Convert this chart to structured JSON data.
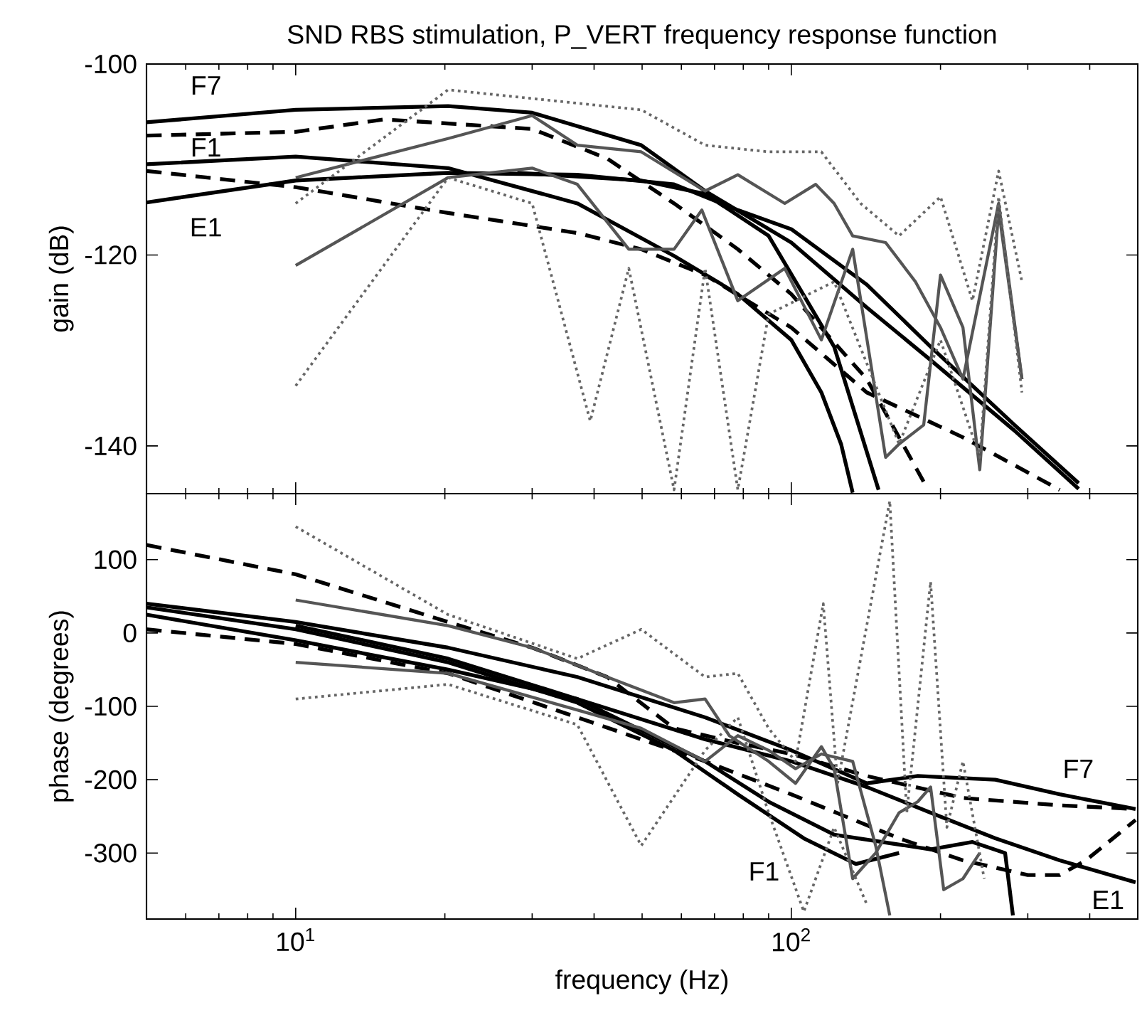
{
  "chart_data": [
    {
      "type": "line",
      "title": "SND RBS stimulation, P_VERT frequency response function",
      "ylabel": "gain (dB)",
      "log": "x",
      "tick_labels": "y",
      "xlim": [
        5,
        500
      ],
      "ylim": [
        -145,
        -100
      ],
      "yticks": [
        -140,
        -120,
        -100
      ],
      "annotations": [
        "F7",
        "F1",
        "E1"
      ],
      "series": [
        {
          "color": "#000000",
          "line_style": "solid",
          "x": [
            5,
            10,
            20.3,
            30,
            49.8,
            67,
            100,
            142,
            191,
            282,
            380
          ],
          "values": [
            -106.1,
            -104.8,
            -104.4,
            -105.1,
            -108.5,
            -113.3,
            -118.7,
            -125.5,
            -131,
            -138.4,
            -144.5
          ]
        },
        {
          "color": "#000000",
          "line_style": "solid",
          "x": [
            5,
            10,
            20.3,
            37,
            58,
            78,
            100,
            142,
            191,
            282,
            380
          ],
          "values": [
            -114.5,
            -112.2,
            -111.4,
            -111.6,
            -112.6,
            -115.3,
            -117.3,
            -123.1,
            -129.6,
            -137.8,
            -143.9
          ]
        },
        {
          "color": "#000000",
          "line_style": "solid",
          "x": [
            5,
            10,
            20.3,
            37,
            58,
            78,
            100,
            115,
            126,
            133
          ],
          "values": [
            -110.5,
            -109.7,
            -110.9,
            -114.6,
            -120.1,
            -124.1,
            -128.9,
            -134.4,
            -139.8,
            -144.9
          ]
        },
        {
          "color": "#000000",
          "line_style": "solid",
          "x": [
            28,
            49.8,
            67,
            90,
            122,
            150
          ],
          "values": [
            -111.4,
            -112.2,
            -113.6,
            -118.0,
            -129.6,
            -144.6
          ]
        },
        {
          "color": "#000000",
          "line_style": "dashed",
          "x": [
            5,
            10,
            15.1,
            30,
            42.5,
            58,
            78,
            100,
            142,
            187
          ],
          "values": [
            -107.5,
            -107.1,
            -105.8,
            -106.8,
            -109.9,
            -114.6,
            -119.4,
            -124.1,
            -133,
            -144.2
          ]
        },
        {
          "color": "#000000",
          "line_style": "dashed",
          "x": [
            5,
            10,
            20.3,
            37,
            49.8,
            67,
            100,
            142,
            222,
            348
          ],
          "values": [
            -111.2,
            -112.9,
            -115.6,
            -117.7,
            -119.4,
            -122.1,
            -127.6,
            -134.4,
            -139.1,
            -144.6
          ]
        },
        {
          "color": "#555555",
          "line_style": "solid",
          "x": [
            10,
            20.3,
            30,
            37,
            47,
            58,
            66,
            78,
            97,
            115,
            133,
            155,
            165,
            185,
            200,
            222,
            240,
            262,
            292
          ],
          "values": [
            -121.1,
            -111.9,
            -110.9,
            -112.6,
            -119.4,
            -119.4,
            -115.3,
            -124.8,
            -121.4,
            -128.9,
            -119.4,
            -141.2,
            -139.8,
            -137.8,
            -122.1,
            -127.6,
            -142.5,
            -115.3,
            -133
          ]
        },
        {
          "color": "#555555",
          "line_style": "solid",
          "x": [
            10,
            20.3,
            30,
            37,
            49.8,
            67,
            78,
            97,
            112,
            122,
            133,
            155,
            178,
            200,
            222,
            262,
            292
          ],
          "values": [
            -111.9,
            -107.8,
            -105.4,
            -108.5,
            -109.2,
            -113.3,
            -111.6,
            -114.6,
            -112.6,
            -114.6,
            -118.0,
            -118.7,
            -122.8,
            -127.6,
            -133,
            -114.6,
            -133
          ]
        },
        {
          "color": "#666666",
          "line_style": "dotted",
          "x": [
            10,
            20.3,
            49.8,
            67,
            90,
            115,
            138,
            165,
            200,
            232,
            262,
            292
          ],
          "values": [
            -114.6,
            -102.7,
            -104.8,
            -108.5,
            -109.2,
            -109.2,
            -114.6,
            -118,
            -113.9,
            -124.8,
            -111.2,
            -122.8
          ]
        },
        {
          "color": "#666666",
          "line_style": "dotted",
          "x": [
            10,
            20.3,
            30,
            39.3,
            47,
            58,
            67,
            78,
            90,
            122,
            165,
            200,
            240,
            262,
            292
          ],
          "values": [
            -133.7,
            -111.9,
            -114.6,
            -137.4,
            -121.4,
            -144.6,
            -121.4,
            -144.6,
            -126.2,
            -122.8,
            -139.8,
            -128.9,
            -141.2,
            -113.9,
            -134.4
          ]
        }
      ]
    },
    {
      "type": "line",
      "xlabel": "frequency (Hz)",
      "ylabel": "phase (degrees)",
      "log": "x",
      "xlim": [
        5,
        500
      ],
      "ylim": [
        -390,
        190
      ],
      "xticks": [
        {
          "value": 10,
          "label": "10$^{1}$"
        },
        {
          "value": 100,
          "label": "10$^{2}$"
        }
      ],
      "yticks": [
        -300,
        -200,
        -100,
        0,
        100
      ],
      "annotations": [
        "F7",
        "F1",
        "E1"
      ],
      "series": [
        {
          "color": "#000000",
          "line_style": "solid",
          "x": [
            5,
            10,
            20.3,
            37,
            67,
            100,
            142,
            180,
            258,
            348,
            495
          ],
          "values": [
            40,
            15,
            -20,
            -60,
            -115,
            -160,
            -205,
            -195,
            -200,
            -220,
            -240
          ]
        },
        {
          "color": "#000000",
          "line_style": "solid",
          "x": [
            5,
            10,
            20.3,
            37,
            67,
            100,
            142,
            191,
            258,
            348,
            495
          ],
          "values": [
            25,
            -10,
            -50,
            -90,
            -145,
            -175,
            -210,
            -245,
            -280,
            -310,
            -340
          ]
        },
        {
          "color": "#000000",
          "line_style": "solid",
          "x": [
            5,
            10,
            20.3,
            37,
            58,
            78,
            106,
            135,
            165
          ],
          "values": [
            35,
            5,
            -40,
            -95,
            -160,
            -220,
            -280,
            -315,
            -300
          ]
        },
        {
          "color": "#000000",
          "line_style": "solid",
          "x": [
            10,
            20.3,
            37,
            67,
            90,
            122,
            191,
            232,
            270,
            280
          ],
          "values": [
            10,
            -35,
            -90,
            -175,
            -230,
            -275,
            -295,
            -285,
            -300,
            -385
          ]
        },
        {
          "color": "#000000",
          "line_style": "dashed",
          "x": [
            5,
            10,
            20.3,
            30,
            42.5,
            58,
            78,
            100,
            142,
            222,
            348,
            495
          ],
          "values": [
            120,
            80,
            15,
            -20,
            -60,
            -130,
            -150,
            -165,
            -195,
            -225,
            -235,
            -240
          ]
        },
        {
          "color": "#000000",
          "line_style": "dashed",
          "x": [
            5,
            10,
            20.3,
            37,
            67,
            100,
            165,
            222,
            300,
            348,
            393,
            495
          ],
          "values": [
            5,
            -15,
            -55,
            -115,
            -175,
            -220,
            -280,
            -310,
            -330,
            -330,
            -310,
            -255
          ]
        },
        {
          "color": "#555555",
          "line_style": "solid",
          "x": [
            10,
            20.3,
            30,
            42.5,
            58,
            67,
            75,
            90,
            102,
            115,
            122,
            133,
            148,
            165,
            180,
            191,
            203,
            222,
            240
          ],
          "values": [
            45,
            10,
            -20,
            -60,
            -95,
            -90,
            -140,
            -175,
            -205,
            -155,
            -185,
            -335,
            -300,
            -245,
            -230,
            -210,
            -350,
            -335,
            -300
          ]
        },
        {
          "color": "#555555",
          "line_style": "solid",
          "x": [
            10,
            20.3,
            37,
            49.8,
            67,
            78,
            90,
            102,
            115,
            133,
            148,
            158
          ],
          "values": [
            -40,
            -55,
            -105,
            -130,
            -175,
            -140,
            -160,
            -185,
            -165,
            -175,
            -290,
            -385
          ]
        },
        {
          "color": "#666666",
          "line_style": "dotted",
          "x": [
            10,
            20.3,
            37,
            49.8,
            67,
            78,
            90,
            102,
            116,
            124,
            158,
            171,
            191,
            206,
            222,
            245
          ],
          "values": [
            145,
            25,
            -35,
            5,
            -60,
            -55,
            -130,
            -175,
            40,
            -205,
            180,
            -245,
            70,
            -265,
            -175,
            -335
          ]
        },
        {
          "color": "#666666",
          "line_style": "dotted",
          "x": [
            10,
            20.3,
            37,
            49.8,
            67,
            78,
            90,
            106,
            122,
            142
          ],
          "values": [
            -90,
            -70,
            -125,
            -290,
            -160,
            -115,
            -245,
            -380,
            -265,
            -370
          ]
        }
      ]
    }
  ]
}
